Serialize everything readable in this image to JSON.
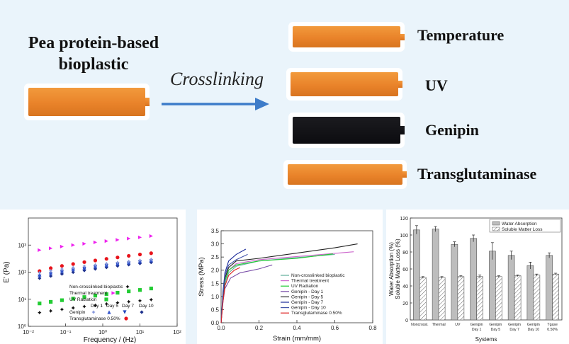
{
  "header": {
    "title_line1": "Pea protein-based",
    "title_line2": "bioplastic",
    "process": "Crosslinking"
  },
  "treatments": [
    "Temperature",
    "UV",
    "Genipin",
    "Transglutaminase"
  ],
  "colors": {
    "arrow": "#3d7cc9",
    "background": "#eaf4fb",
    "strip_orange": "#e9832a",
    "strip_black": "#111114"
  },
  "chart_data": [
    {
      "type": "scatter",
      "ylabel": "E' (Pa)",
      "xlabel": "Frequency / (Hz)",
      "xscale": "log",
      "yscale": "log",
      "xlim": [
        0.01,
        100
      ],
      "ylim": [
        1,
        10000
      ],
      "x_ticks": [
        "10⁻²",
        "10⁻¹",
        "10⁰",
        "10¹",
        "10²"
      ],
      "y_ticks": [
        "10⁰",
        "10¹",
        "10²",
        "10³"
      ],
      "x": [
        0.02,
        0.04,
        0.08,
        0.16,
        0.32,
        0.63,
        1.26,
        2.5,
        5,
        10,
        20
      ],
      "series": [
        {
          "name": "Thermal treatment",
          "color": "#ee22ee",
          "marker": "triangle-right",
          "values": [
            650,
            760,
            880,
            1000,
            1120,
            1260,
            1400,
            1560,
            1740,
            1930,
            2150
          ]
        },
        {
          "name": "Transglutaminase 0.50%",
          "color": "#e8131b",
          "marker": "circle",
          "values": [
            110,
            140,
            170,
            200,
            235,
            270,
            310,
            350,
            400,
            450,
            500
          ]
        },
        {
          "name": "Genipin Day 10",
          "color": "#1c2f8c",
          "marker": "diamond",
          "values": [
            60,
            72,
            86,
            100,
            116,
            132,
            150,
            170,
            190,
            210,
            230
          ]
        },
        {
          "name": "Genipin Day 7",
          "color": "#2244bb",
          "marker": "triangle-down",
          "values": [
            70,
            85,
            100,
            116,
            133,
            151,
            170,
            190,
            210,
            232,
            255
          ]
        },
        {
          "name": "Genipin Day 5",
          "color": "#3355cc",
          "marker": "triangle-up",
          "values": [
            80,
            96,
            113,
            130,
            148,
            167,
            187,
            208,
            230,
            253,
            277
          ]
        },
        {
          "name": "Genipin Day 1",
          "color": "#8899dd",
          "marker": "star",
          "values": [
            95,
            112,
            130,
            148,
            167,
            187,
            208,
            229,
            251,
            274,
            298
          ]
        },
        {
          "name": "UV Radiation",
          "color": "#22cc33",
          "marker": "square",
          "values": [
            7,
            8,
            9.2,
            10.5,
            12,
            13.6,
            15.4,
            17.4,
            19.6,
            22,
            25
          ]
        },
        {
          "name": "Non-crosslinked bioplastic",
          "color": "#111111",
          "marker": "star",
          "values": [
            3.2,
            3.7,
            4.2,
            4.8,
            5.4,
            6,
            6.7,
            7.4,
            8.1,
            8.8,
            9.6
          ]
        }
      ],
      "legend": {
        "line1": "Non-crosslinked bioplastic",
        "line2": "Thermal treatment",
        "line3": "UV Radiation",
        "days": [
          "Day 1",
          "Day 5",
          "Day 7",
          "Day 10"
        ],
        "genipin": "Genipin",
        "tg": "Transglutaminase 0.50%"
      }
    },
    {
      "type": "line",
      "xlabel": "Strain (mm/mm)",
      "ylabel": "Stress (MPa)",
      "xlim": [
        0,
        0.8
      ],
      "ylim": [
        0,
        3.5
      ],
      "x_ticks": [
        "0.0",
        "0.2",
        "0.4",
        "0.6",
        "0.8"
      ],
      "y_ticks": [
        "0.0",
        "0.5",
        "1.0",
        "1.5",
        "2.0",
        "2.5",
        "3.0",
        "3.5"
      ],
      "series": [
        {
          "name": "Non-crosslinked bioplastic",
          "color": "#5fae9a",
          "points": [
            [
              0,
              0
            ],
            [
              0.01,
              0.9
            ],
            [
              0.02,
              1.5
            ],
            [
              0.04,
              1.9
            ],
            [
              0.08,
              2.15
            ],
            [
              0.2,
              2.35
            ],
            [
              0.4,
              2.48
            ],
            [
              0.6,
              2.6
            ]
          ]
        },
        {
          "name": "Thermal treatment",
          "color": "#cc66cc",
          "points": [
            [
              0,
              0
            ],
            [
              0.01,
              1.0
            ],
            [
              0.02,
              1.6
            ],
            [
              0.04,
              2.0
            ],
            [
              0.08,
              2.25
            ],
            [
              0.2,
              2.4
            ],
            [
              0.4,
              2.52
            ],
            [
              0.7,
              2.7
            ]
          ]
        },
        {
          "name": "UV Radiation",
          "color": "#22cc33",
          "points": [
            [
              0,
              0
            ],
            [
              0.01,
              1.0
            ],
            [
              0.02,
              1.6
            ],
            [
              0.04,
              2.0
            ],
            [
              0.08,
              2.2
            ],
            [
              0.2,
              2.35
            ],
            [
              0.4,
              2.45
            ],
            [
              0.59,
              2.62
            ]
          ]
        },
        {
          "name": "Genipin - Day 1",
          "color": "#7a4fa8",
          "points": [
            [
              0,
              0
            ],
            [
              0.01,
              0.8
            ],
            [
              0.02,
              1.3
            ],
            [
              0.05,
              1.7
            ],
            [
              0.1,
              1.9
            ],
            [
              0.2,
              2.05
            ],
            [
              0.27,
              2.2
            ]
          ]
        },
        {
          "name": "Genipin - Day 5",
          "color": "#222222",
          "points": [
            [
              0,
              0
            ],
            [
              0.01,
              1.0
            ],
            [
              0.02,
              1.7
            ],
            [
              0.04,
              2.1
            ],
            [
              0.08,
              2.35
            ],
            [
              0.2,
              2.45
            ],
            [
              0.4,
              2.65
            ],
            [
              0.6,
              2.85
            ],
            [
              0.72,
              3.0
            ]
          ]
        },
        {
          "name": "Genipin - Day 7",
          "color": "#1a2a9a",
          "points": [
            [
              0,
              0
            ],
            [
              0.01,
              1.2
            ],
            [
              0.02,
              1.9
            ],
            [
              0.04,
              2.35
            ],
            [
              0.08,
              2.6
            ],
            [
              0.13,
              2.8
            ]
          ]
        },
        {
          "name": "Genipin - Day 10",
          "color": "#4455aa",
          "points": [
            [
              0,
              0
            ],
            [
              0.01,
              1.1
            ],
            [
              0.02,
              1.8
            ],
            [
              0.04,
              2.2
            ],
            [
              0.08,
              2.4
            ],
            [
              0.14,
              2.6
            ]
          ]
        },
        {
          "name": "Transglutaminase 0.50%",
          "color": "#dd2222",
          "points": [
            [
              0,
              0
            ],
            [
              0.01,
              0.8
            ],
            [
              0.02,
              1.4
            ],
            [
              0.04,
              1.8
            ],
            [
              0.07,
              2.0
            ],
            [
              0.1,
              2.1
            ]
          ]
        }
      ]
    },
    {
      "type": "bar",
      "xlabel": "Systems",
      "ylabel": "Water Absorption (%)",
      "ylabel2": "Soluble Matter Loss (%)",
      "ylim": [
        0,
        120
      ],
      "y_ticks": [
        "0",
        "20",
        "40",
        "60",
        "80",
        "100",
        "120"
      ],
      "categories": [
        "Noncrossl.",
        "Thermal",
        "UV",
        "Genipin Day 1",
        "Genipin Day 5",
        "Genipin Day 7",
        "Genipin Day 10",
        "Tgase 0.50%"
      ],
      "series": [
        {
          "name": "Water Absorption",
          "values": [
            106,
            107,
            89,
            96,
            81,
            76,
            64,
            76
          ],
          "errors": [
            5,
            3,
            3,
            4,
            10,
            5,
            4,
            3
          ]
        },
        {
          "name": "Soluble Matter Loss",
          "values": [
            50,
            50,
            51,
            51,
            51,
            52,
            53,
            54
          ],
          "errors": [
            1,
            1,
            1,
            2,
            1,
            1,
            1,
            1
          ]
        }
      ]
    }
  ]
}
